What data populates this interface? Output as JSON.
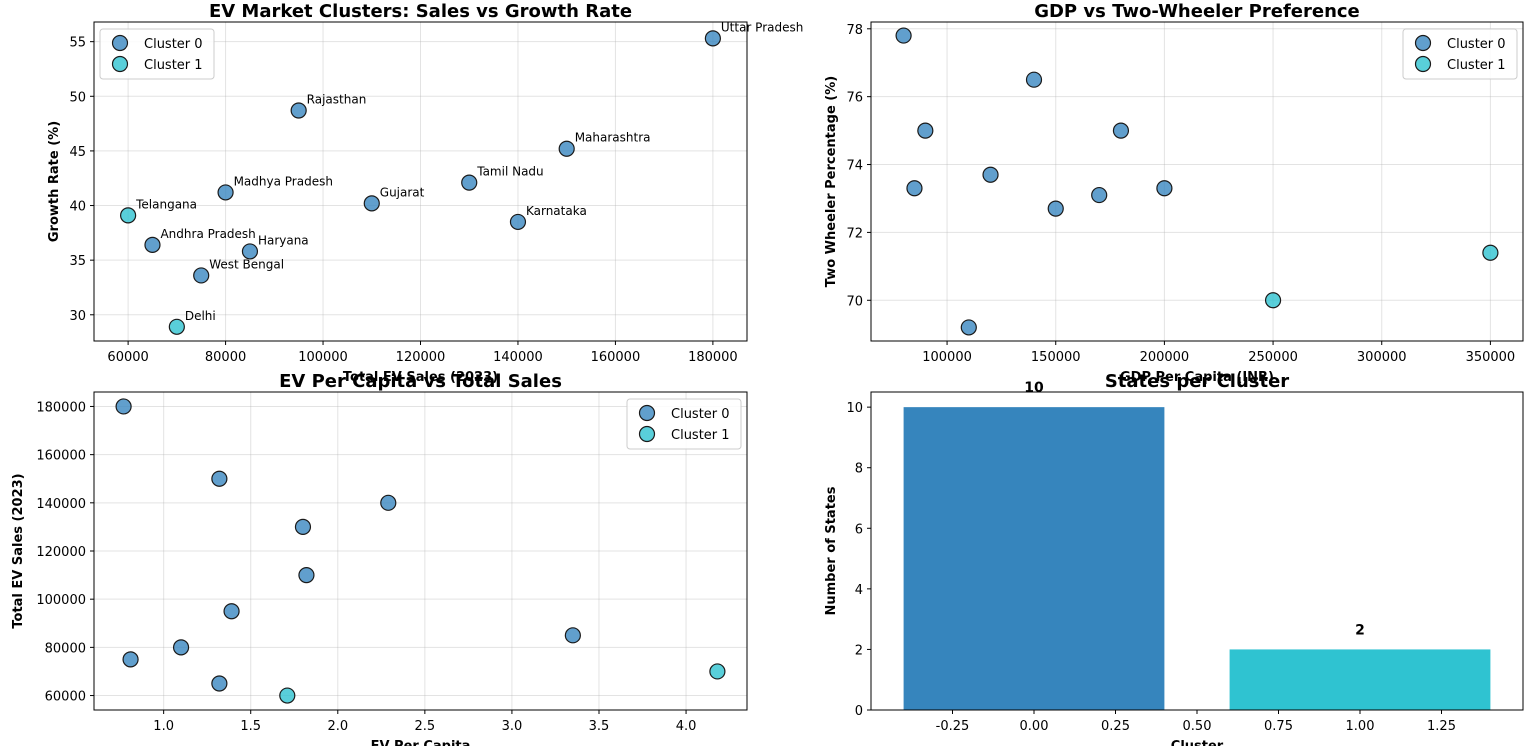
{
  "colors": {
    "cluster_0": "#3a87c0",
    "cluster_1": "#2fc3d1"
  },
  "chart_data": [
    {
      "type": "scatter",
      "title": "EV Market Clusters: Sales vs Growth Rate",
      "xlabel": "Total EV Sales (2023)",
      "ylabel": "Growth Rate (%)",
      "xlim": [
        53000,
        187000
      ],
      "ylim": [
        27.6,
        56.8
      ],
      "xticks": [
        60000,
        80000,
        100000,
        120000,
        140000,
        160000,
        180000
      ],
      "yticks": [
        30,
        35,
        40,
        45,
        50,
        55
      ],
      "grid": true,
      "legend": "top-left",
      "series": [
        {
          "name": "Cluster 0",
          "points": [
            {
              "x": 180000,
              "y": 55.3,
              "label": "Uttar Pradesh"
            },
            {
              "x": 150000,
              "y": 45.2,
              "label": "Maharashtra"
            },
            {
              "x": 140000,
              "y": 38.5,
              "label": "Karnataka"
            },
            {
              "x": 130000,
              "y": 42.1,
              "label": "Tamil Nadu"
            },
            {
              "x": 110000,
              "y": 40.2,
              "label": "Gujarat"
            },
            {
              "x": 95000,
              "y": 48.7,
              "label": "Rajasthan"
            },
            {
              "x": 80000,
              "y": 41.2,
              "label": "Madhya Pradesh"
            },
            {
              "x": 85000,
              "y": 35.8,
              "label": "Haryana"
            },
            {
              "x": 65000,
              "y": 36.4,
              "label": "Andhra Pradesh"
            },
            {
              "x": 75000,
              "y": 33.6,
              "label": "West Bengal"
            }
          ]
        },
        {
          "name": "Cluster 1",
          "points": [
            {
              "x": 60000,
              "y": 39.1,
              "label": "Telangana"
            },
            {
              "x": 70000,
              "y": 28.9,
              "label": "Delhi"
            }
          ]
        }
      ]
    },
    {
      "type": "scatter",
      "title": "GDP vs Two-Wheeler Preference",
      "xlabel": "GDP Per Capita (INR)",
      "ylabel": "Two Wheeler Percentage (%)",
      "xlim": [
        65000,
        365000
      ],
      "ylim": [
        68.8,
        78.2
      ],
      "xticks": [
        100000,
        150000,
        200000,
        250000,
        300000,
        350000
      ],
      "yticks": [
        70,
        72,
        74,
        76,
        78
      ],
      "grid": true,
      "legend": "top-right",
      "series": [
        {
          "name": "Cluster 0",
          "points": [
            {
              "x": 80000,
              "y": 77.8
            },
            {
              "x": 90000,
              "y": 75.0
            },
            {
              "x": 85000,
              "y": 73.3
            },
            {
              "x": 140000,
              "y": 76.5
            },
            {
              "x": 120000,
              "y": 73.7
            },
            {
              "x": 180000,
              "y": 75.0
            },
            {
              "x": 150000,
              "y": 72.7
            },
            {
              "x": 170000,
              "y": 73.1
            },
            {
              "x": 200000,
              "y": 73.3
            },
            {
              "x": 110000,
              "y": 69.2
            }
          ]
        },
        {
          "name": "Cluster 1",
          "points": [
            {
              "x": 250000,
              "y": 70.0
            },
            {
              "x": 350000,
              "y": 71.4
            }
          ]
        }
      ]
    },
    {
      "type": "scatter",
      "title": "EV Per Capita vs Total Sales",
      "xlabel": "EV Per Capita",
      "ylabel": "Total EV Sales (2023)",
      "xlim": [
        0.6,
        4.35
      ],
      "ylim": [
        54000,
        186000
      ],
      "xticks": [
        1.0,
        1.5,
        2.0,
        2.5,
        3.0,
        3.5,
        4.0
      ],
      "yticks": [
        60000,
        80000,
        100000,
        120000,
        140000,
        160000,
        180000
      ],
      "grid": true,
      "legend": "top-right",
      "series": [
        {
          "name": "Cluster 0",
          "points": [
            {
              "x": 0.77,
              "y": 180000
            },
            {
              "x": 1.32,
              "y": 150000
            },
            {
              "x": 2.29,
              "y": 140000
            },
            {
              "x": 1.8,
              "y": 130000
            },
            {
              "x": 1.82,
              "y": 110000
            },
            {
              "x": 1.39,
              "y": 95000
            },
            {
              "x": 1.1,
              "y": 80000
            },
            {
              "x": 0.81,
              "y": 75000
            },
            {
              "x": 1.32,
              "y": 65000
            },
            {
              "x": 3.35,
              "y": 85000
            }
          ]
        },
        {
          "name": "Cluster 1",
          "points": [
            {
              "x": 1.71,
              "y": 60000
            },
            {
              "x": 4.18,
              "y": 70000
            }
          ]
        }
      ]
    },
    {
      "type": "bar",
      "title": "States per Cluster",
      "xlabel": "Cluster",
      "ylabel": "Number of States",
      "xlim": [
        -0.5,
        1.5
      ],
      "ylim": [
        0,
        10.5
      ],
      "xticks": [
        -0.25,
        0.0,
        0.25,
        0.5,
        0.75,
        1.0,
        1.25
      ],
      "yticks": [
        0,
        2,
        4,
        6,
        8,
        10
      ],
      "grid": false,
      "bars": [
        {
          "x": 0,
          "value": 10,
          "label": "10",
          "color": "#3685bd"
        },
        {
          "x": 1,
          "value": 2,
          "label": "2",
          "color": "#2fc3d1"
        }
      ]
    }
  ]
}
